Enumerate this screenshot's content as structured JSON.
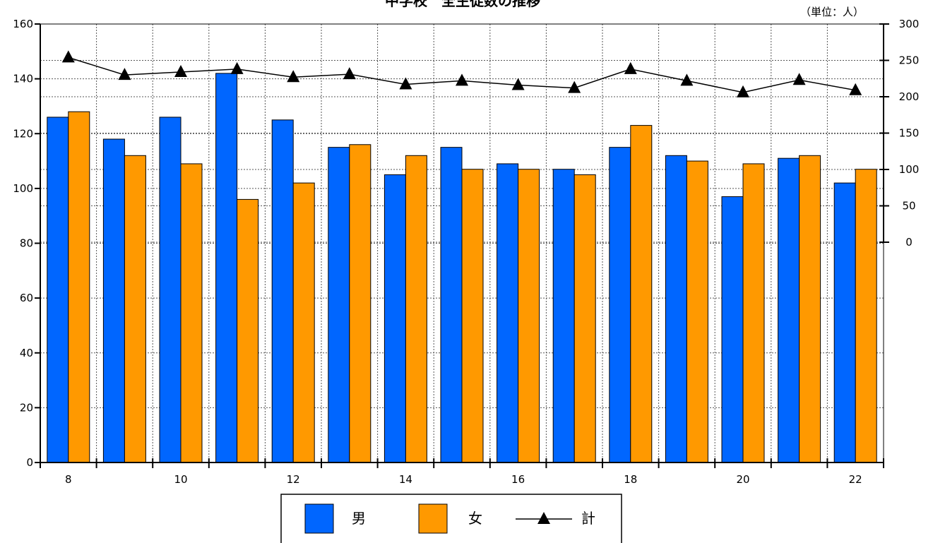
{
  "chart_data": {
    "type": "bar+line",
    "title": "中学校　全生徒数の推移",
    "unit_note": "（単位：人）",
    "categories": [
      "8",
      "9",
      "10",
      "11",
      "12",
      "13",
      "14",
      "15",
      "16",
      "17",
      "18",
      "19",
      "20",
      "21",
      "22"
    ],
    "x_tick_labels": [
      "8",
      "",
      "10",
      "",
      "12",
      "",
      "14",
      "",
      "16",
      "",
      "18",
      "",
      "20",
      "",
      "22"
    ],
    "series": [
      {
        "name": "男",
        "type": "bar",
        "axis": "left",
        "color": "#0066FF",
        "values": [
          126,
          118,
          126,
          142,
          125,
          115,
          105,
          115,
          109,
          107,
          115,
          112,
          97,
          111,
          102
        ]
      },
      {
        "name": "女",
        "type": "bar",
        "axis": "left",
        "color": "#FF9900",
        "values": [
          128,
          112,
          109,
          96,
          102,
          116,
          112,
          107,
          107,
          105,
          123,
          110,
          109,
          112,
          107
        ]
      },
      {
        "name": "計",
        "type": "line",
        "axis": "right",
        "color": "#000000",
        "marker": "triangle-icon",
        "values": [
          254,
          230,
          234,
          238,
          227,
          231,
          217,
          222,
          216,
          212,
          238,
          222,
          206,
          223,
          209
        ]
      }
    ],
    "left_axis": {
      "min": 0,
      "max": 160,
      "ticks": [
        0,
        20,
        40,
        60,
        80,
        100,
        120,
        140,
        160
      ]
    },
    "right_axis": {
      "min": 0,
      "max": 300,
      "ticks": [
        0,
        50,
        100,
        150,
        200,
        250,
        300
      ]
    },
    "grid": true,
    "legend": {
      "position": "bottom-center",
      "items": [
        "男",
        "女",
        "計"
      ]
    }
  }
}
